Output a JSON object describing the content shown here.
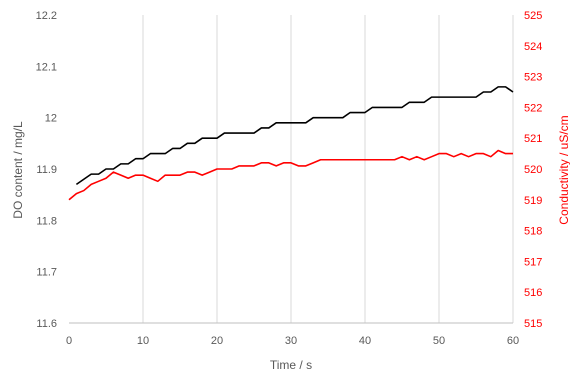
{
  "chart_data": {
    "type": "line",
    "title": "",
    "xlabel": "Time / s",
    "ylabel_left": "DO content / mg/L",
    "ylabel_right": "Conductivity / uS/cm",
    "xlim": [
      0,
      60
    ],
    "ylim_left": [
      11.6,
      12.2
    ],
    "ylim_right": [
      515,
      525
    ],
    "x_ticks": [
      "0",
      "10",
      "20",
      "30",
      "40",
      "50",
      "60"
    ],
    "y_ticks_left": [
      "11.6",
      "11.7",
      "11.8",
      "11.9",
      "12",
      "12.1",
      "12.2"
    ],
    "y_ticks_right": [
      "515",
      "516",
      "517",
      "518",
      "519",
      "520",
      "521",
      "522",
      "523",
      "524",
      "525"
    ],
    "grid": "vertical",
    "legend": "none",
    "series": [
      {
        "axis": "left",
        "color": "#000000",
        "x": [
          1,
          2,
          3,
          4,
          5,
          6,
          7,
          8,
          9,
          10,
          11,
          12,
          13,
          14,
          15,
          16,
          17,
          18,
          19,
          20,
          21,
          22,
          23,
          24,
          25,
          26,
          27,
          28,
          29,
          30,
          31,
          32,
          33,
          34,
          35,
          36,
          37,
          38,
          39,
          40,
          41,
          42,
          43,
          44,
          45,
          46,
          47,
          48,
          49,
          50,
          51,
          52,
          53,
          54,
          55,
          56,
          57,
          58,
          59,
          60
        ],
        "values": [
          11.87,
          11.88,
          11.89,
          11.89,
          11.9,
          11.9,
          11.91,
          11.91,
          11.92,
          11.92,
          11.93,
          11.93,
          11.93,
          11.94,
          11.94,
          11.95,
          11.95,
          11.96,
          11.96,
          11.96,
          11.97,
          11.97,
          11.97,
          11.97,
          11.97,
          11.98,
          11.98,
          11.99,
          11.99,
          11.99,
          11.99,
          11.99,
          12.0,
          12.0,
          12.0,
          12.0,
          12.0,
          12.01,
          12.01,
          12.01,
          12.02,
          12.02,
          12.02,
          12.02,
          12.02,
          12.03,
          12.03,
          12.03,
          12.04,
          12.04,
          12.04,
          12.04,
          12.04,
          12.04,
          12.04,
          12.05,
          12.05,
          12.06,
          12.06,
          12.05
        ]
      },
      {
        "axis": "right",
        "color": "#ff0000",
        "x": [
          0,
          1,
          2,
          3,
          4,
          5,
          6,
          7,
          8,
          9,
          10,
          11,
          12,
          13,
          14,
          15,
          16,
          17,
          18,
          19,
          20,
          21,
          22,
          23,
          24,
          25,
          26,
          27,
          28,
          29,
          30,
          31,
          32,
          33,
          34,
          35,
          36,
          37,
          38,
          39,
          40,
          41,
          42,
          43,
          44,
          45,
          46,
          47,
          48,
          49,
          50,
          51,
          52,
          53,
          54,
          55,
          56,
          57,
          58,
          59,
          60
        ],
        "values": [
          519.0,
          519.2,
          519.3,
          519.5,
          519.6,
          519.7,
          519.9,
          519.8,
          519.7,
          519.8,
          519.8,
          519.7,
          519.6,
          519.8,
          519.8,
          519.8,
          519.9,
          519.9,
          519.8,
          519.9,
          520.0,
          520.0,
          520.0,
          520.1,
          520.1,
          520.1,
          520.2,
          520.2,
          520.1,
          520.2,
          520.2,
          520.1,
          520.1,
          520.2,
          520.3,
          520.3,
          520.3,
          520.3,
          520.3,
          520.3,
          520.3,
          520.3,
          520.3,
          520.3,
          520.3,
          520.4,
          520.3,
          520.4,
          520.3,
          520.4,
          520.5,
          520.5,
          520.4,
          520.5,
          520.4,
          520.5,
          520.5,
          520.4,
          520.6,
          520.5,
          520.5
        ]
      }
    ]
  }
}
